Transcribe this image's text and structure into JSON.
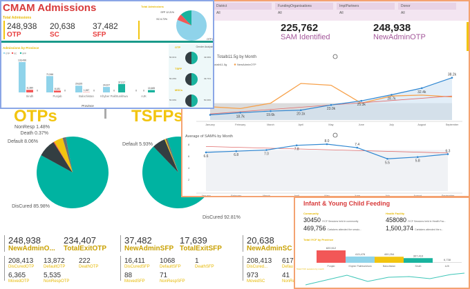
{
  "bottom": {
    "otp_title": "OTPs",
    "tsfp_title": "TSFPs",
    "otp_pie": [
      {
        "label": "DisCured 85.98%",
        "value": 85.98,
        "color": "#00b3a1"
      },
      {
        "label": "Default 8.06%",
        "value": 8.06,
        "color": "#333e42"
      },
      {
        "label": "Death 0.37%",
        "value": 0.37,
        "color": "#e84040"
      },
      {
        "label": "",
        "value": 4.11,
        "color": "#f2c40f"
      },
      {
        "label": "NonResp 1.48%",
        "value": 1.48,
        "color": "#6b6f73"
      }
    ],
    "tsfp_pie": [
      {
        "label": "DisCured 92.81%",
        "value": 92.81,
        "color": "#00b3a1"
      },
      {
        "label": "Default 5.93%",
        "value": 5.93,
        "color": "#333e42"
      },
      {
        "label": "",
        "value": 0.5,
        "color": "#f2c40f"
      },
      {
        "label": "",
        "value": 0.76,
        "color": "#6b6f73"
      }
    ],
    "otp_stats": {
      "new_admin": "248,938",
      "new_admin_label": "NewAdminO...",
      "total_exit": "234,407",
      "total_exit_label": "TotalExitOTP",
      "rows": [
        [
          [
            "208,413",
            "DisCuredOTP"
          ],
          [
            "13,872",
            "DefaultOTP"
          ],
          [
            "222",
            "DeathOTP"
          ]
        ],
        [
          [
            "6,365",
            "MovedOTP"
          ],
          [
            "5,535",
            "NonRespOTP"
          ]
        ]
      ]
    },
    "sfp_stats": {
      "new_admin": "37,482",
      "new_admin_label": "NewAdminSFP",
      "total_exit": "17,639",
      "total_exit_label": "TotalExitSFP",
      "rows": [
        [
          [
            "16,411",
            "DisCuredSFP"
          ],
          [
            "1068",
            "DefaultSFP"
          ],
          [
            "1",
            "DeathSFP"
          ]
        ],
        [
          [
            "88",
            "MovedSFP"
          ],
          [
            "71",
            "NonRespSFP"
          ]
        ]
      ]
    },
    "sc_stats": {
      "new_admin": "20,638",
      "new_admin_label": "NewAdminSC",
      "rows": [
        [
          [
            "208,413",
            "DisCured..."
          ],
          [
            "617",
            "Defau"
          ]
        ],
        [
          [
            "973",
            "MovedSC"
          ],
          [
            "41",
            "NonRe"
          ]
        ]
      ]
    }
  },
  "right_panel": {
    "filters": [
      {
        "label": "",
        "value": ""
      },
      {
        "label": "District",
        "value": "All"
      },
      {
        "label": "FundingOrganisations",
        "value": "All"
      },
      {
        "label": "ImplPartners",
        "value": "All"
      },
      {
        "label": "Donor",
        "value": "All"
      }
    ],
    "kpis": [
      {
        "value": ",747",
        "label": "ildScreen"
      },
      {
        "value": "225,762",
        "label": "SAM Identified"
      },
      {
        "value": "248,938",
        "label": "NewAdminOTP"
      }
    ],
    "chart1": {
      "title": "Totalb11.5g by Month",
      "legend": [
        "otalb11.5g",
        "NewAdminOTP"
      ],
      "months": [
        "January",
        "February",
        "March",
        "April",
        "May",
        "June",
        "July",
        "August",
        "September"
      ],
      "series_blue": [
        17.5,
        18.7,
        19.6,
        20.1,
        23.0,
        25.3,
        28.7,
        32.4,
        38.2
      ],
      "blue_labels": [
        "",
        "18.7k",
        "19.6k",
        "20.1k",
        "23.0k",
        "25.3k",
        "28.7k",
        "32.4k",
        "38.2k"
      ],
      "series_orange": [
        22,
        21,
        24,
        35,
        34,
        24,
        28,
        28.5,
        27.5
      ],
      "colors": {
        "blue": "#2e86d1",
        "orange": "#f7a14a",
        "trend": "#e06a6a"
      }
    },
    "chart2": {
      "title": "Average of SAM% by Month",
      "months": [
        "January",
        "February",
        "March",
        "April",
        "May",
        "June",
        "July",
        "August",
        "September"
      ],
      "values": [
        6.6,
        6.8,
        7.0,
        7.8,
        8.0,
        7.4,
        5.5,
        5.8,
        6.3
      ],
      "labels": [
        "6.6",
        "6.8",
        "7.0",
        "7.8",
        "8.0",
        "7.4",
        "5.5",
        "5.8",
        "6.3"
      ],
      "yticks": [
        "2",
        "4",
        "6",
        "8"
      ],
      "ylim": [
        0,
        9
      ]
    }
  },
  "cmam": {
    "title": "CMAM Admissions",
    "total_label": "Total Admissions",
    "kpis": [
      {
        "value": "248,938",
        "label": "OTP"
      },
      {
        "value": "20,638",
        "label": "SC"
      },
      {
        "value": "37,482",
        "label": "SFP"
      }
    ],
    "pie_title": "Total Admissions",
    "pie": [
      {
        "label": "OTP 81.07%",
        "value": 81.07,
        "color": "#8fd3ea"
      },
      {
        "label": "SC 6.72%",
        "value": 6.72,
        "color": "#f25757"
      },
      {
        "label": "SFP 12.21%",
        "value": 12.21,
        "color": "#19b39e"
      }
    ],
    "bar_title": "Admissions by Province",
    "legend": [
      "OTP",
      "SC",
      "SFP"
    ],
    "xlabel": "Province",
    "provinces": [
      "Sindh",
      "Punjab",
      "Balochistan",
      "Khyber Pakhtunkhwa",
      "AJK"
    ],
    "bars": {
      "OTP": [
        133436,
        71946,
        29625,
        24027,
        0
      ],
      "SC": [
        11380,
        8181,
        1067,
        0,
        0
      ],
      "SFP": [
        0,
        0,
        0,
        37017,
        10465
      ]
    },
    "bar_labels": {
      "OTP": [
        "133,436",
        "71,946",
        "29,625",
        "24,027",
        "0"
      ],
      "SC": [
        "11,380",
        "8,181",
        "1,067",
        "0",
        "0"
      ],
      "SFP": [
        "0",
        "0",
        "0",
        "37,017",
        "10,465"
      ]
    },
    "bar_colors": {
      "OTP": "#8fd3ea",
      "SC": "#f25757",
      "SFP": "#19b39e"
    },
    "gender_title": "Gender Analysis",
    "gender": [
      {
        "name": "OTP",
        "left": "50.01%",
        "right": "49.99%"
      },
      {
        "name": "TSFP",
        "left": "50.29%",
        "right": "49.71%"
      },
      {
        "name": "MSCs",
        "left": "50.00%",
        "right": "50.00%"
      }
    ]
  },
  "iycf": {
    "title": "Infant & Young Child Feeding",
    "community": {
      "title": "Community",
      "rows": [
        {
          "value": "30450",
          "text": "IYCF Sessions held in community"
        },
        {
          "value": "469,756",
          "text": "Cartakers attended the sessio..."
        }
      ]
    },
    "facility": {
      "title": "Health Facility",
      "rows": [
        {
          "value": "458080",
          "text": "IYCF Sessions held in Health Fac..."
        },
        {
          "value": "1,500,374",
          "text": "Cartakers attended the s..."
        }
      ]
    },
    "bar_title": "Total IYCF by Province",
    "bars": [
      {
        "name": "Punjab",
        "value": 820512,
        "label": "820,512",
        "color": "#f25757"
      },
      {
        "name": "Khyber Pakhtunkhwa",
        "value": 413476,
        "label": "413,476",
        "color": "#8fd3ea"
      },
      {
        "name": "Balochistan",
        "value": 400254,
        "label": "400,254",
        "color": "#f2c40f"
      },
      {
        "name": "Sindh",
        "value": 307410,
        "label": "307,410",
        "color": "#19b39e"
      },
      {
        "name": "AJK",
        "value": 6738,
        "label": "6,738",
        "color": "#ddd"
      }
    ],
    "line_title": "Total IYCF sessions by month"
  }
}
